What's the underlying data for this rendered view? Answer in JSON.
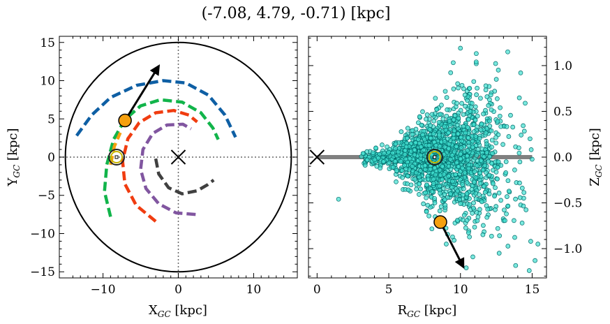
{
  "title": "(-7.08, 4.79, -0.71) [kpc]",
  "colors": {
    "sun": "#f5a00f",
    "scatter_fill": "#40e0d0",
    "scatter_edge": "#006a6a",
    "arc_blue": "#0e5fa4",
    "arc_green": "#11b44a",
    "arc_red": "#f03c10",
    "arc_purple": "#8156a0",
    "arc_gray": "#404040",
    "arc_orange": "#f5a00f"
  },
  "chart_data": [
    {
      "type": "scatter",
      "panel": "left",
      "xlabel": "X",
      "xlabel_sub": "GC",
      "xlabel_unit": "[kpc]",
      "ylabel": "Y",
      "ylabel_sub": "GC",
      "ylabel_unit": "[kpc]",
      "xlim": [
        -15.8,
        15.8
      ],
      "ylim": [
        -15.8,
        15.8
      ],
      "x_ticks": [
        -10,
        0,
        10
      ],
      "y_ticks": [
        -15,
        -10,
        -5,
        0,
        5,
        10,
        15
      ],
      "x_tick_labels": [
        "−10",
        "0",
        "10"
      ],
      "y_tick_labels": [
        "−15",
        "−10",
        "−5",
        "0",
        "5",
        "10",
        "15"
      ],
      "galaxy_radius": 15,
      "galactic_center": [
        0,
        0
      ],
      "sun_position": [
        -8.2,
        0
      ],
      "star_position": [
        -7.08,
        4.79
      ],
      "velocity_arrow": {
        "from": [
          -7.08,
          4.79
        ],
        "to": [
          -2.6,
          11.9
        ]
      },
      "spiral_arcs": [
        {
          "color_key": "arc_blue",
          "points": [
            [
              -13.5,
              2.8
            ],
            [
              -11.5,
              5.5
            ],
            [
              -9,
              7.8
            ],
            [
              -5.5,
              9.4
            ],
            [
              -2,
              10
            ],
            [
              1,
              9.7
            ],
            [
              4,
              8.1
            ],
            [
              6.2,
              5.5
            ],
            [
              7.6,
              2.6
            ]
          ]
        },
        {
          "color_key": "arc_green",
          "points": [
            [
              -9,
              -7.8
            ],
            [
              -9.8,
              -4.5
            ],
            [
              -9.5,
              -1
            ],
            [
              -8.6,
              2.3
            ],
            [
              -7.1,
              4.9
            ],
            [
              -5,
              6.7
            ],
            [
              -2.4,
              7.5
            ],
            [
              0.5,
              7.2
            ],
            [
              3,
              5.8
            ],
            [
              4.6,
              3.8
            ],
            [
              5.3,
              2.3
            ]
          ]
        },
        {
          "color_key": "arc_red",
          "points": [
            [
              -3,
              -8.4
            ],
            [
              -5.6,
              -6.3
            ],
            [
              -7.1,
              -3.5
            ],
            [
              -7.4,
              -0.5
            ],
            [
              -6.7,
              2.4
            ],
            [
              -5.2,
              4.5
            ],
            [
              -3,
              5.8
            ],
            [
              -0.6,
              6.1
            ],
            [
              1.4,
              5.5
            ],
            [
              2.5,
              4.6
            ]
          ]
        },
        {
          "color_key": "arc_purple",
          "points": [
            [
              2.3,
              -7.5
            ],
            [
              -0.3,
              -7.3
            ],
            [
              -2.6,
              -6.1
            ],
            [
              -4.3,
              -4.1
            ],
            [
              -5,
              -1.6
            ],
            [
              -4.7,
              1
            ],
            [
              -3.4,
              3.1
            ],
            [
              -1.5,
              4.2
            ],
            [
              0.6,
              4.3
            ],
            [
              1.7,
              3.7
            ]
          ]
        },
        {
          "color_key": "arc_gray",
          "points": [
            [
              -3,
              -0.2
            ],
            [
              -2.6,
              -2.2
            ],
            [
              -1.3,
              -4
            ],
            [
              0.5,
              -4.8
            ],
            [
              2.5,
              -4.4
            ],
            [
              3.9,
              -3.6
            ],
            [
              4.7,
              -3
            ]
          ]
        },
        {
          "color_key": "arc_orange",
          "points": [
            [
              -9,
              -1
            ],
            [
              -8.5,
              1.4
            ],
            [
              -7.7,
              3.2
            ]
          ]
        }
      ]
    },
    {
      "type": "scatter",
      "panel": "right",
      "xlabel": "R",
      "xlabel_sub": "GC",
      "xlabel_unit": "[kpc]",
      "ylabel": "Z",
      "ylabel_sub": "GC",
      "ylabel_unit": "[kpc]",
      "xlim": [
        -0.6,
        16
      ],
      "ylim": [
        -1.32,
        1.32
      ],
      "x_ticks": [
        0,
        5,
        10,
        15
      ],
      "y_ticks": [
        -1.0,
        -0.5,
        0.0,
        0.5,
        1.0
      ],
      "x_tick_labels": [
        "0",
        "5",
        "10",
        "15"
      ],
      "y_tick_labels": [
        "−1.0",
        "−0.5",
        "0.0",
        "0.5",
        "1.0"
      ],
      "disk_line": {
        "x": [
          0,
          15
        ],
        "y": 0
      },
      "galactic_center": [
        0,
        0
      ],
      "sun_position": [
        8.2,
        0
      ],
      "star_position": [
        8.6,
        -0.71
      ],
      "velocity_arrow": {
        "from": [
          8.6,
          -0.71
        ],
        "to": [
          10.2,
          -1.2
        ]
      },
      "scatter_population": {
        "count": 1800,
        "r_center": 8.6,
        "r_spread": 2.2,
        "r_min": 3,
        "r_max": 15,
        "z_spread_base": 0.05,
        "z_spread_growth": 0.05
      },
      "outliers": [
        [
          10,
          1.19
        ],
        [
          11.1,
          1.04
        ],
        [
          12.5,
          0.85
        ],
        [
          13.3,
          1.15
        ],
        [
          14.2,
          0.92
        ],
        [
          1.5,
          -0.46
        ],
        [
          9.8,
          -0.37
        ],
        [
          11.3,
          -0.41
        ],
        [
          11.9,
          -0.57
        ],
        [
          12.6,
          -0.78
        ],
        [
          13.2,
          -0.62
        ],
        [
          14.9,
          -0.92
        ],
        [
          15.4,
          -0.95
        ],
        [
          12.7,
          -1.05
        ],
        [
          10.4,
          -1.21
        ],
        [
          14.8,
          -1.24
        ],
        [
          15.2,
          -1.13
        ],
        [
          14.3,
          -0.72
        ],
        [
          3.2,
          0.04
        ],
        [
          3.5,
          -0.03
        ],
        [
          4.1,
          0.1
        ],
        [
          4.4,
          -0.12
        ]
      ]
    }
  ]
}
